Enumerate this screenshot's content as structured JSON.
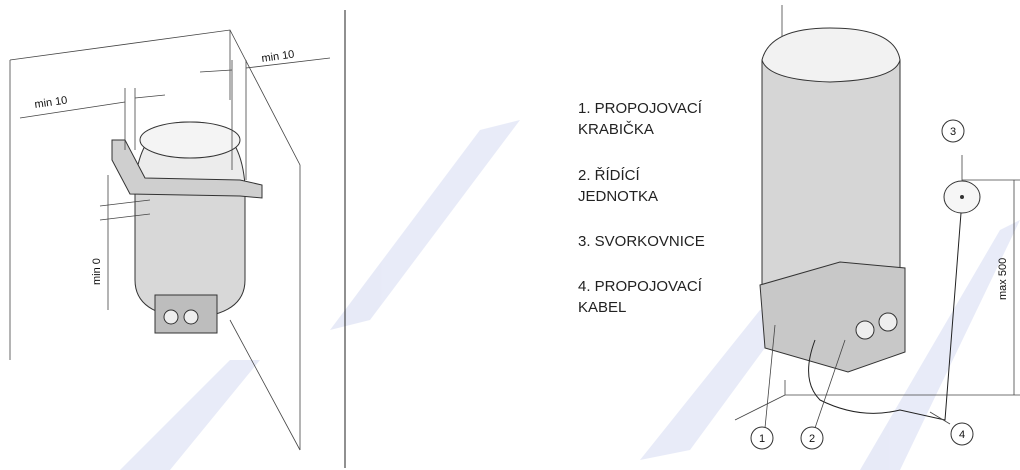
{
  "left_figure": {
    "labels": [
      "min 10",
      "min 10",
      "min 0"
    ]
  },
  "right_figure": {
    "legend": [
      [
        "1. PROPOJOVACÍ",
        "KRABIČKA"
      ],
      [
        "2. ŘÍDÍCÍ",
        "JEDNOTKA"
      ],
      [
        "3. SVORKOVNICE"
      ],
      [
        "4. PROPOJOVACÍ",
        "KABEL"
      ]
    ],
    "callouts": [
      "1",
      "2",
      "3",
      "4"
    ],
    "dimension": "max 500"
  }
}
